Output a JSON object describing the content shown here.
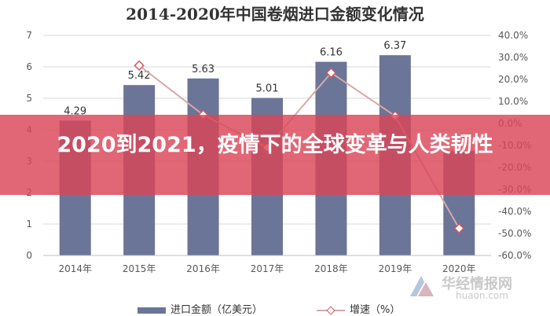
{
  "chart_data": {
    "type": "bar",
    "title": "2014-2020年中国卷烟进口金额变化情况",
    "categories": [
      "2014年",
      "2015年",
      "2016年",
      "2017年",
      "2018年",
      "2019年",
      "2020年"
    ],
    "series": [
      {
        "name": "进口金额（亿美元）",
        "type": "bar",
        "axis": "left",
        "values": [
          4.29,
          5.42,
          5.63,
          5.01,
          6.16,
          6.37,
          3.33
        ]
      },
      {
        "name": "增速（%）",
        "type": "line",
        "axis": "right",
        "values": [
          null,
          26.3,
          3.9,
          -11.0,
          23.0,
          3.4,
          -47.7
        ]
      }
    ],
    "bar_data_labels": [
      "4.29",
      "5.42",
      "5.63",
      "5.01",
      "6.16",
      "6.37",
      ""
    ],
    "ylim": [
      0,
      7
    ],
    "y_ticks": [
      "0",
      "1",
      "2",
      "3",
      "4",
      "5",
      "6",
      "7"
    ],
    "y2lim": [
      -60,
      40
    ],
    "y2_ticks": [
      "40.0%",
      "30.0%",
      "20.0%",
      "10.0%",
      "0.0%",
      "-10.0%",
      "-20.0%",
      "-30.0%",
      "-40.0%",
      "-50.0%",
      "-60.0%"
    ],
    "grid": true,
    "legend_position": "bottom",
    "colors": {
      "bar": "#6b7597",
      "line": "#d9a7a8",
      "marker": "#d35a5d"
    }
  },
  "banner": {
    "text": "2020到2021，疫情下的全球变革与人类韧性",
    "color": "#da4658"
  },
  "watermark": {
    "cn": "华经情报网",
    "en": "huaon.com"
  }
}
